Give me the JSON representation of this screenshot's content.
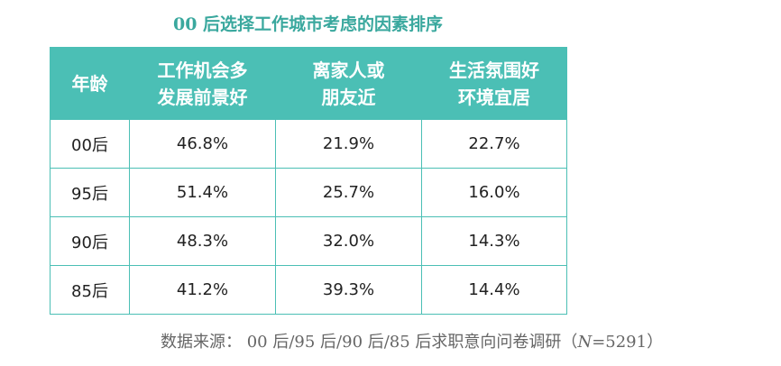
{
  "title": "00 后选择工作城市考虑的因素排序",
  "table": {
    "header": [
      [
        "年龄"
      ],
      [
        "工作机会多",
        "发展前景好"
      ],
      [
        "离家人或",
        "朋友近"
      ],
      [
        "生活氛围好",
        "环境宜居"
      ]
    ],
    "rows": [
      [
        "00后",
        "46.8%",
        "21.9%",
        "22.7%"
      ],
      [
        "95后",
        "51.4%",
        "25.7%",
        "16.0%"
      ],
      [
        "90后",
        "48.3%",
        "32.0%",
        "14.3%"
      ],
      [
        "85后",
        "41.2%",
        "39.3%",
        "14.4%"
      ]
    ]
  },
  "source": {
    "label": "数据来源：",
    "before": "00 后/95 后/90 后/85 后求职意向问卷调研（",
    "italic": "N",
    "after": "=5291）"
  }
}
